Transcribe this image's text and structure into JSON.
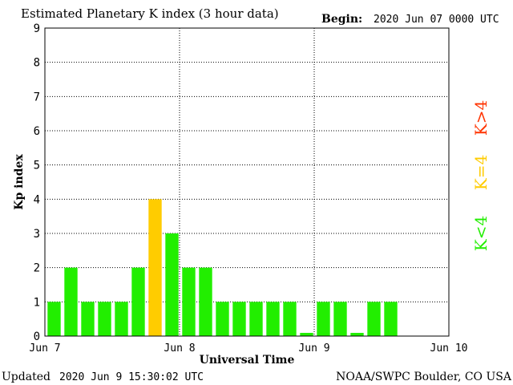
{
  "header": {
    "title": "Estimated Planetary K index (3 hour data)",
    "begin_label": "Begin:",
    "begin_value": "2020 Jun 07 0000 UTC"
  },
  "footer": {
    "updated_label": "Updated",
    "updated_value": "2020 Jun  9 15:30:02 UTC",
    "source": "NOAA/SWPC Boulder, CO USA"
  },
  "legend": {
    "high": "K>4",
    "equal": "K=4",
    "low": "K<4",
    "colors": {
      "high": "#ff3300",
      "equal": "#ffcc00",
      "low": "#22ee00"
    }
  },
  "chart_data": {
    "type": "bar",
    "title": "Estimated Planetary K index (3 hour data)",
    "xlabel": "Universal Time",
    "ylabel": "Kp index",
    "ylim": [
      0,
      9
    ],
    "yticks": [
      "0",
      "1",
      "2",
      "3",
      "4",
      "5",
      "6",
      "7",
      "8",
      "9"
    ],
    "xticks": [
      "Jun 7",
      "Jun 8",
      "Jun 9",
      "Jun 10"
    ],
    "grid": true,
    "interval_hours": 3,
    "x": [
      "2020-06-07 00:00",
      "2020-06-07 03:00",
      "2020-06-07 06:00",
      "2020-06-07 09:00",
      "2020-06-07 12:00",
      "2020-06-07 15:00",
      "2020-06-07 18:00",
      "2020-06-07 21:00",
      "2020-06-08 00:00",
      "2020-06-08 03:00",
      "2020-06-08 06:00",
      "2020-06-08 09:00",
      "2020-06-08 12:00",
      "2020-06-08 15:00",
      "2020-06-08 18:00",
      "2020-06-08 21:00",
      "2020-06-09 00:00",
      "2020-06-09 03:00",
      "2020-06-09 06:00",
      "2020-06-09 09:00",
      "2020-06-09 12:00"
    ],
    "values": [
      1,
      2,
      1,
      1,
      1,
      2,
      4,
      3,
      2,
      2,
      1,
      1,
      1,
      1,
      1,
      0,
      1,
      1,
      0,
      1,
      1
    ]
  }
}
